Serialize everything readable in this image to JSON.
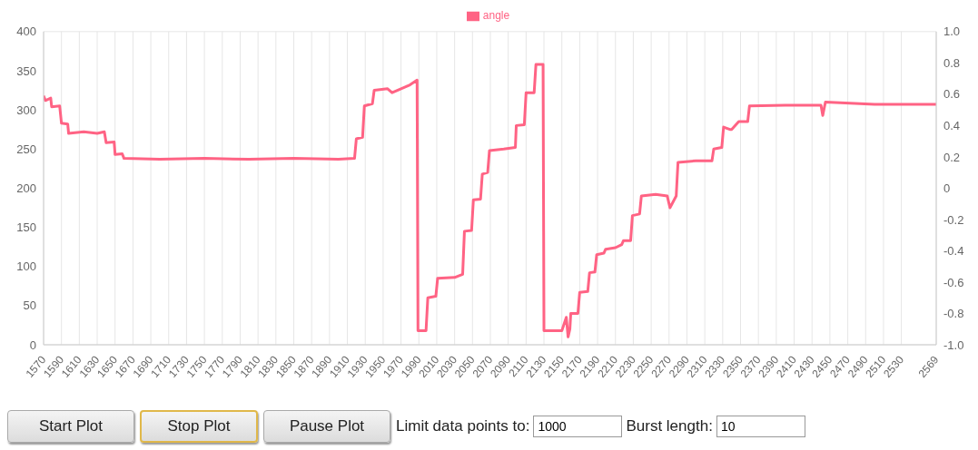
{
  "chart_data": {
    "type": "line",
    "legend": "top",
    "grid": true,
    "marker": "none",
    "line_style": "solid",
    "xlim": [
      1570,
      2569
    ],
    "xticks": [
      1570,
      1590,
      1610,
      1630,
      1650,
      1670,
      1690,
      1710,
      1730,
      1750,
      1770,
      1790,
      1810,
      1830,
      1850,
      1870,
      1890,
      1910,
      1930,
      1950,
      1970,
      1990,
      2010,
      2030,
      2050,
      2070,
      2090,
      2110,
      2130,
      2150,
      2170,
      2190,
      2210,
      2230,
      2250,
      2270,
      2290,
      2310,
      2330,
      2350,
      2370,
      2390,
      2410,
      2430,
      2450,
      2470,
      2490,
      2510,
      2530,
      2569
    ],
    "ylim": [
      0,
      400
    ],
    "yticks": [
      0,
      50,
      100,
      150,
      200,
      250,
      300,
      350,
      400
    ],
    "y2lim": [
      -1,
      1
    ],
    "y2ticks": [
      {
        "value": -1,
        "label": "-1.0"
      },
      -0.8,
      -0.6,
      -0.4,
      -0.2,
      0,
      0.2,
      0.4,
      0.6,
      0.8,
      {
        "value": 1,
        "label": "1.0"
      }
    ],
    "series": [
      {
        "name": "angle",
        "color": "#ff6384",
        "x": [
          1570,
          1572,
          1578,
          1579,
          1588,
          1590,
          1597,
          1598,
          1615,
          1630,
          1638,
          1640,
          1649,
          1650,
          1658,
          1660,
          1700,
          1750,
          1800,
          1850,
          1900,
          1918,
          1920,
          1927,
          1929,
          1938,
          1940,
          1955,
          1960,
          1970,
          1980,
          1988,
          1989,
          1998,
          2000,
          2009,
          2011,
          2030,
          2039,
          2041,
          2049,
          2051,
          2059,
          2061,
          2067,
          2069,
          2085,
          2098,
          2099,
          2108,
          2110,
          2119,
          2121,
          2129,
          2130,
          2150,
          2155,
          2157,
          2159,
          2160,
          2168,
          2170,
          2179,
          2181,
          2187,
          2189,
          2197,
          2199,
          2210,
          2217,
          2219,
          2227,
          2229,
          2237,
          2239,
          2255,
          2268,
          2271,
          2278,
          2280,
          2300,
          2318,
          2320,
          2329,
          2331,
          2338,
          2340,
          2348,
          2358,
          2360,
          2400,
          2440,
          2442,
          2445,
          2500,
          2569
        ],
        "values": [
          318,
          312,
          315,
          304,
          305,
          283,
          282,
          270,
          272,
          270,
          272,
          258,
          259,
          243,
          244,
          238,
          237,
          238,
          237,
          238,
          237,
          238,
          263,
          265,
          305,
          308,
          325,
          327,
          322,
          327,
          332,
          338,
          18,
          18,
          60,
          62,
          85,
          86,
          90,
          145,
          146,
          185,
          186,
          218,
          220,
          248,
          250,
          252,
          280,
          281,
          322,
          322,
          358,
          358,
          18,
          18,
          35,
          10,
          20,
          40,
          40,
          67,
          68,
          92,
          93,
          115,
          117,
          122,
          124,
          128,
          133,
          133,
          165,
          167,
          190,
          192,
          190,
          175,
          190,
          233,
          235,
          235,
          250,
          252,
          278,
          275,
          275,
          285,
          285,
          305,
          306,
          306,
          293,
          310,
          307,
          307
        ]
      }
    ],
    "annotations": [
      "Start Plot",
      "Stop Plot",
      "Pause Plot",
      "Limit data points to:",
      "1000",
      "Burst length:",
      "10"
    ]
  }
}
